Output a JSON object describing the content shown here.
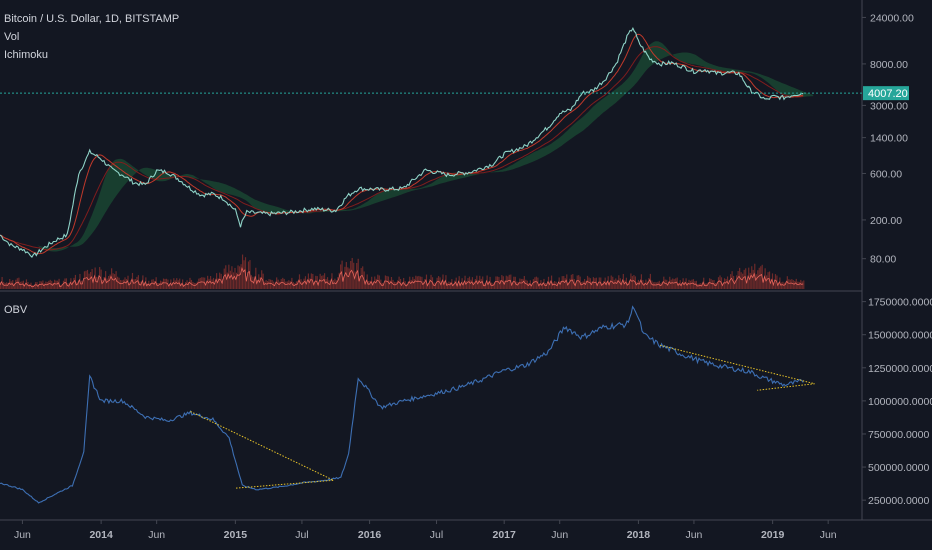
{
  "legend": {
    "symbol_line": "Bitcoin / U.S. Dollar, 1D, BITSTAMP",
    "vol_label": "Vol",
    "ichimoku_label": "Ichimoku",
    "obv_label": "OBV"
  },
  "price_tag": "4007.20",
  "colors": {
    "background": "#131722",
    "pane_border": "#434651",
    "axis_text": "#b2b5be",
    "price_line": "#8fd3c7",
    "tenkan": "#c0392b",
    "kijun": "#7f1d1d",
    "cloud_green": "#1e5e3a",
    "volume_bar": "#6d2a2a",
    "volume_line": "#e2635a",
    "obv_line": "#3d6fb3",
    "trendline": "#e6c229",
    "current_price_bg": "#26a69a"
  },
  "chart_data": [
    {
      "type": "line",
      "title": "Bitcoin / U.S. Dollar, 1D, BITSTAMP",
      "yscale": "log",
      "ylim": [
        40,
        30000
      ],
      "y_ticks": [
        "24000.00",
        "8000.00",
        "3000.00",
        "1400.00",
        "600.00",
        "200.00",
        "80.00"
      ],
      "current_price": 4007.2,
      "x_ticks": [
        "Jun",
        "2014",
        "Jun",
        "2015",
        "Jul",
        "2016",
        "Jul",
        "2017",
        "Jun",
        "2018",
        "Jun",
        "2019",
        "Jun"
      ],
      "series": [
        {
          "name": "Bitcoin / U.S. Dollar",
          "x": [
            "2013-04-01",
            "2013-05-01",
            "2013-06-01",
            "2013-07-01",
            "2013-08-01",
            "2013-09-01",
            "2013-10-01",
            "2013-11-01",
            "2013-12-01",
            "2014-01-01",
            "2014-02-01",
            "2014-03-01",
            "2014-04-01",
            "2014-05-01",
            "2014-06-01",
            "2014-07-01",
            "2014-08-01",
            "2014-09-01",
            "2014-10-01",
            "2014-11-01",
            "2014-12-01",
            "2015-01-01",
            "2015-01-15",
            "2015-02-01",
            "2015-04-01",
            "2015-06-01",
            "2015-08-01",
            "2015-10-01",
            "2015-11-01",
            "2015-12-01",
            "2016-02-01",
            "2016-04-01",
            "2016-06-01",
            "2016-08-01",
            "2016-10-01",
            "2016-12-01",
            "2017-01-01",
            "2017-03-01",
            "2017-05-01",
            "2017-06-01",
            "2017-07-01",
            "2017-08-01",
            "2017-09-01",
            "2017-10-01",
            "2017-11-01",
            "2017-12-01",
            "2017-12-17",
            "2018-01-01",
            "2018-02-01",
            "2018-03-01",
            "2018-04-01",
            "2018-05-01",
            "2018-06-01",
            "2018-07-01",
            "2018-08-01",
            "2018-09-01",
            "2018-10-01",
            "2018-11-01",
            "2018-11-25",
            "2018-12-15",
            "2019-01-01",
            "2019-02-01",
            "2019-03-01",
            "2019-03-25"
          ],
          "values": [
            140,
            110,
            100,
            85,
            105,
            125,
            140,
            600,
            1000,
            850,
            650,
            580,
            480,
            460,
            640,
            620,
            520,
            420,
            360,
            370,
            330,
            250,
            175,
            240,
            230,
            240,
            260,
            250,
            350,
            420,
            410,
            420,
            650,
            580,
            620,
            750,
            950,
            1150,
            1800,
            2500,
            2700,
            4000,
            4300,
            5500,
            8000,
            15000,
            19000,
            13500,
            9000,
            8000,
            8200,
            7500,
            6700,
            7000,
            6400,
            6500,
            6400,
            4300,
            3800,
            3400,
            3700,
            3600,
            3900,
            4007
          ]
        }
      ]
    },
    {
      "type": "bar",
      "title": "Vol",
      "series": [
        {
          "name": "Vol",
          "x": [
            "2013-04-01",
            "2013-07-01",
            "2013-10-01",
            "2013-11-15",
            "2013-12-10",
            "2014-02-01",
            "2014-05-01",
            "2014-08-01",
            "2014-11-01",
            "2015-01-15",
            "2015-04-01",
            "2015-07-01",
            "2015-10-01",
            "2015-11-05",
            "2016-01-01",
            "2016-04-01",
            "2016-07-01",
            "2016-10-01",
            "2017-01-01",
            "2017-04-01",
            "2017-07-01",
            "2017-10-01",
            "2017-12-10",
            "2018-02-05",
            "2018-05-01",
            "2018-08-01",
            "2018-11-20",
            "2019-01-15",
            "2019-03-25"
          ],
          "values": [
            0.35,
            0.2,
            0.25,
            0.45,
            0.6,
            0.5,
            0.3,
            0.25,
            0.35,
            0.85,
            0.3,
            0.35,
            0.4,
            1.0,
            0.35,
            0.3,
            0.35,
            0.3,
            0.35,
            0.3,
            0.35,
            0.3,
            0.4,
            0.35,
            0.25,
            0.3,
            0.65,
            0.35,
            0.2
          ]
        }
      ]
    },
    {
      "type": "line",
      "title": "OBV",
      "ylim": [
        100000,
        1800000
      ],
      "y_ticks": [
        "1750000.0000",
        "1500000.0000",
        "1250000.0000",
        "1000000.0000",
        "750000.0000",
        "500000.0000",
        "250000.0000"
      ],
      "x_ticks": [
        "Jun",
        "2014",
        "Jun",
        "2015",
        "Jul",
        "2016",
        "Jul",
        "2017",
        "Jun",
        "2018",
        "Jun",
        "2019",
        "Jun"
      ],
      "series": [
        {
          "name": "OBV",
          "x": [
            "2013-04-01",
            "2013-06-01",
            "2013-07-15",
            "2013-09-01",
            "2013-10-15",
            "2013-11-15",
            "2013-12-01",
            "2014-01-01",
            "2014-03-01",
            "2014-05-01",
            "2014-07-01",
            "2014-09-01",
            "2014-11-01",
            "2014-12-15",
            "2015-01-20",
            "2015-03-01",
            "2015-05-01",
            "2015-07-01",
            "2015-09-01",
            "2015-10-15",
            "2015-11-05",
            "2015-12-01",
            "2016-02-01",
            "2016-04-01",
            "2016-06-20",
            "2016-09-01",
            "2016-11-01",
            "2017-01-01",
            "2017-03-01",
            "2017-05-01",
            "2017-06-15",
            "2017-08-01",
            "2017-10-01",
            "2017-12-01",
            "2017-12-20",
            "2018-01-15",
            "2018-03-01",
            "2018-05-01",
            "2018-07-01",
            "2018-09-01",
            "2018-11-01",
            "2018-12-01",
            "2019-01-01",
            "2019-02-01",
            "2019-03-25"
          ],
          "values": [
            380000,
            330000,
            230000,
            300000,
            360000,
            620000,
            1180000,
            1000000,
            1000000,
            880000,
            850000,
            910000,
            860000,
            720000,
            360000,
            330000,
            350000,
            380000,
            400000,
            420000,
            600000,
            1180000,
            950000,
            1000000,
            1050000,
            1100000,
            1160000,
            1230000,
            1270000,
            1370000,
            1560000,
            1480000,
            1560000,
            1580000,
            1720000,
            1500000,
            1420000,
            1350000,
            1290000,
            1250000,
            1220000,
            1180000,
            1150000,
            1120000,
            1150000
          ]
        },
        {
          "name": "",
          "x": [
            "2014-09-01",
            "2015-09-25",
            "2015-09-25",
            "2015-01-01"
          ],
          "values": [
            920000,
            400000,
            400000,
            340000
          ]
        },
        {
          "name": "",
          "x": [
            "2018-03-01",
            "2019-04-25",
            "2019-04-25",
            "2018-11-20"
          ],
          "values": [
            1420000,
            1130000,
            1130000,
            1080000
          ]
        }
      ]
    }
  ]
}
